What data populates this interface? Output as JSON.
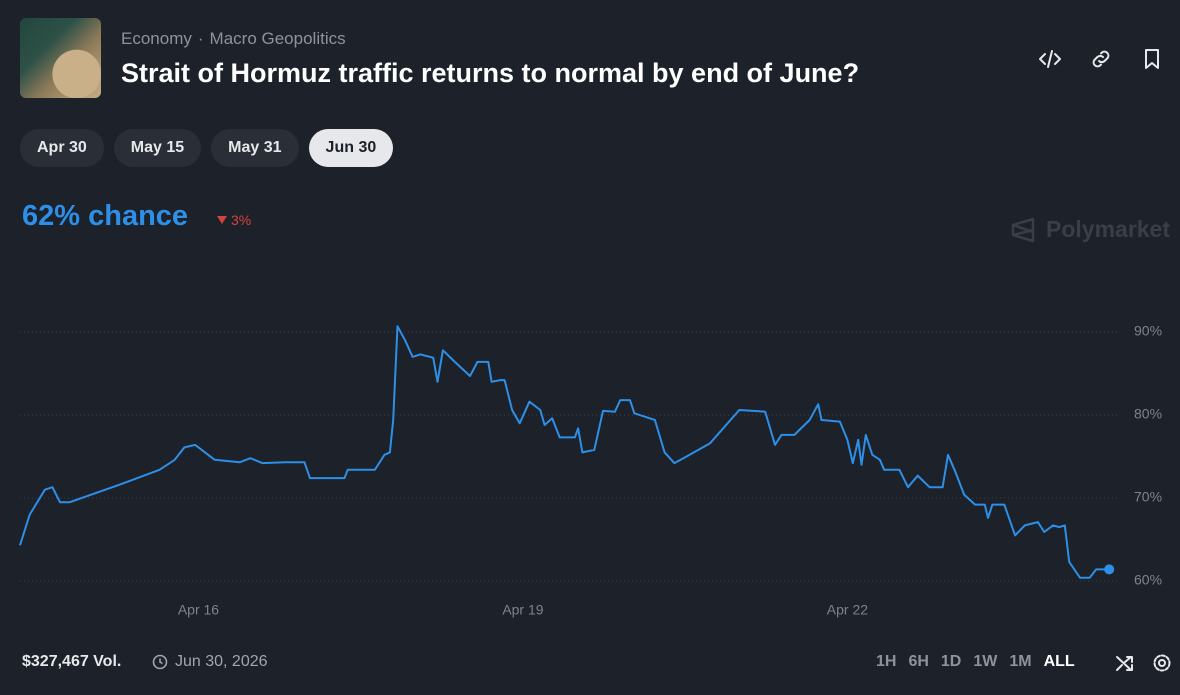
{
  "header": {
    "breadcrumb": [
      "Economy",
      "Macro Geopolitics"
    ],
    "title": "Strait of Hormuz traffic returns to normal by end of June?"
  },
  "date_tabs": [
    "Apr 30",
    "May 15",
    "May 31",
    "Jun 30"
  ],
  "chance": "62% chance",
  "change": "3%",
  "brand": "Polymarket",
  "chart_data": {
    "type": "line",
    "color": "#2d8fe8",
    "grid": true,
    "x": [
      14.35,
      14.44,
      14.58,
      14.65,
      14.72,
      14.81,
      15.27,
      15.64,
      15.78,
      15.87,
      15.97,
      16.15,
      16.38,
      16.48,
      16.59,
      16.8,
      16.98,
      17.03,
      17.35,
      17.38,
      17.63,
      17.72,
      17.77,
      17.8,
      17.84,
      17.91,
      17.98,
      18.05,
      18.17,
      18.21,
      18.26,
      18.37,
      18.51,
      18.58,
      18.68,
      18.71,
      18.79,
      18.83,
      18.9,
      18.97,
      19.06,
      19.16,
      19.2,
      19.27,
      19.34,
      19.48,
      19.51,
      19.55,
      19.66,
      19.74,
      19.85,
      19.9,
      19.99,
      20.03,
      20.22,
      20.31,
      20.4,
      20.5,
      20.73,
      21.0,
      21.24,
      21.33,
      21.39,
      21.51,
      21.65,
      21.73,
      21.76,
      21.93,
      22.0,
      22.05,
      22.1,
      22.13,
      22.17,
      22.23,
      22.3,
      22.34,
      22.48,
      22.56,
      22.65,
      22.76,
      22.88,
      22.93,
      22.99,
      23.08,
      23.18,
      23.27,
      23.3,
      23.34,
      23.45,
      23.55,
      23.64,
      23.76,
      23.82,
      23.9,
      23.96,
      24.01,
      24.05,
      24.15,
      24.24,
      24.3,
      24.42
    ],
    "values": [
      64.3,
      68,
      71,
      71.3,
      69.5,
      69.5,
      71.6,
      73.4,
      74.6,
      76.1,
      76.4,
      74.6,
      74.3,
      74.8,
      74.2,
      74.3,
      74.3,
      72.4,
      72.4,
      73.4,
      73.4,
      75.2,
      75.5,
      79.4,
      90.7,
      89,
      87,
      87.3,
      86.9,
      84,
      87.8,
      86.4,
      84.7,
      86.4,
      86.4,
      84,
      84.2,
      84.2,
      80.6,
      79,
      81.6,
      80.6,
      78.8,
      79.6,
      77.3,
      77.3,
      78.4,
      75.5,
      75.8,
      80.5,
      80.4,
      81.8,
      81.8,
      80.2,
      79.4,
      75.5,
      74.2,
      74.9,
      76.6,
      80.6,
      80.4,
      76.4,
      77.6,
      77.6,
      79.4,
      81.3,
      79.4,
      79.2,
      77,
      74.2,
      77,
      74,
      77.6,
      75.2,
      74.6,
      73.4,
      73.4,
      71.3,
      72.7,
      71.3,
      71.3,
      75.2,
      73.4,
      70.4,
      69.2,
      69.2,
      67.6,
      69.2,
      69.2,
      65.5,
      66.7,
      67.1,
      65.9,
      66.7,
      66.5,
      66.7,
      62.3,
      60.4,
      60.4,
      61.4,
      61.4
    ],
    "xlim": [
      14.35,
      24.52
    ],
    "xticks": [
      {
        "value": 16,
        "label": "Apr 16"
      },
      {
        "value": 19,
        "label": "Apr 19"
      },
      {
        "value": 22,
        "label": "Apr 22"
      }
    ],
    "ylim": [
      58,
      94
    ],
    "yticks": [
      {
        "value": 60,
        "label": "60%"
      },
      {
        "value": 70,
        "label": "70%"
      },
      {
        "value": 80,
        "label": "80%"
      },
      {
        "value": 90,
        "label": "90%"
      }
    ]
  },
  "footer": {
    "volume": "$327,467 Vol.",
    "end_date": "Jun 30, 2026",
    "ranges": [
      "1H",
      "6H",
      "1D",
      "1W",
      "1M",
      "ALL"
    ]
  }
}
